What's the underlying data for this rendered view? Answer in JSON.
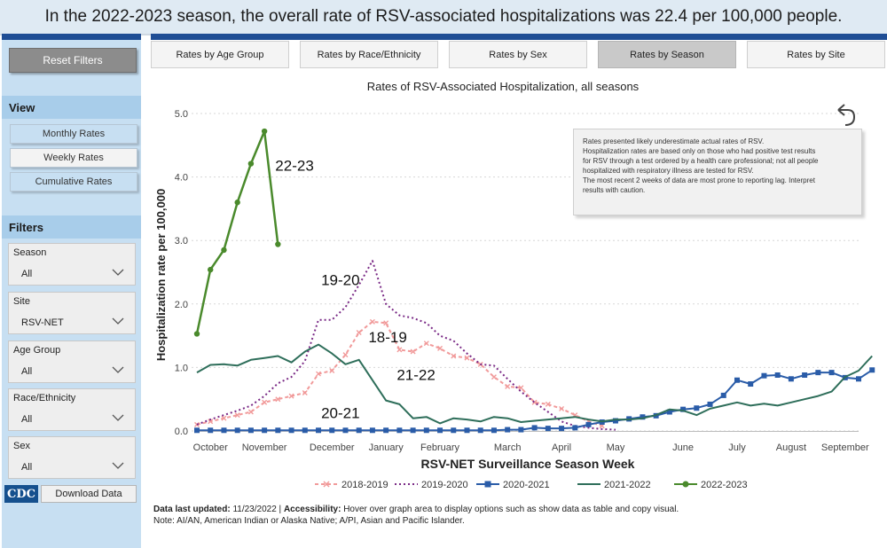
{
  "banner": {
    "text": "In the 2022-2023 season, the overall rate of RSV-associated hospitalizations was 22.4 per 100,000 people."
  },
  "sidebar": {
    "reset_label": "Reset Filters",
    "view_heading": "View",
    "view_buttons": [
      "Monthly Rates",
      "Weekly Rates",
      "Cumulative Rates"
    ],
    "filters_heading": "Filters",
    "filters": [
      {
        "label": "Season",
        "value": "All"
      },
      {
        "label": "Site",
        "value": "RSV-NET"
      },
      {
        "label": "Age Group",
        "value": "All"
      },
      {
        "label": "Race/Ethnicity",
        "value": "All"
      },
      {
        "label": "Sex",
        "value": "All"
      }
    ],
    "logo_text": "CDC",
    "download_label": "Download Data"
  },
  "tabs": [
    {
      "label": "Rates by Age Group",
      "active": false
    },
    {
      "label": "Rates by Race/Ethnicity",
      "active": false
    },
    {
      "label": "Rates by Sex",
      "active": false
    },
    {
      "label": "Rates by Season",
      "active": true
    },
    {
      "label": "Rates by Site",
      "active": false
    }
  ],
  "info_box": {
    "lines": [
      "Rates presented likely underestimate actual rates of RSV.",
      "Hospitalization rates are based only on those who had positive test results",
      "for RSV through a test ordered by a health care professional; not all people",
      "hospitalized with respiratory illness are tested for RSV.",
      "The most recent 2 weeks of data are most prone to reporting lag. Interpret",
      "results with caution."
    ]
  },
  "footer": {
    "updated_label": "Data last updated:",
    "updated_value": " 11/23/2022 | ",
    "accessibility_label": "Accessibility:",
    "accessibility_text": " Hover over graph area to display options such as show data as table and copy visual.",
    "note": "Note: AI/AN, American Indian or Alaska Native; A/PI, Asian and Pacific Islander."
  },
  "colors": {
    "s2018": "#f19a9a",
    "s2019": "#7a2a86",
    "s2020": "#2a5ca8",
    "s2021": "#2e6e5a",
    "s2022": "#4a8a2c",
    "nav": "#1f4e95"
  },
  "chart_data": {
    "type": "line",
    "title": "Rates of RSV-Associated Hospitalization, all seasons",
    "xlabel": "RSV-NET Surveillance Season Week",
    "ylabel": "Hospitalization rate per 100,000",
    "ylim": [
      0,
      5
    ],
    "yticks": [
      "0.0",
      "1.0",
      "2.0",
      "3.0",
      "4.0",
      "5.0"
    ],
    "month_ticks": [
      {
        "label": "October",
        "week": 2
      },
      {
        "label": "November",
        "week": 6
      },
      {
        "label": "December",
        "week": 11
      },
      {
        "label": "January",
        "week": 15
      },
      {
        "label": "February",
        "week": 19
      },
      {
        "label": "March",
        "week": 24
      },
      {
        "label": "April",
        "week": 28
      },
      {
        "label": "May",
        "week": 32
      },
      {
        "label": "June",
        "week": 37
      },
      {
        "label": "July",
        "week": 41
      },
      {
        "label": "August",
        "week": 45
      },
      {
        "label": "September",
        "week": 49
      }
    ],
    "week_range": [
      1,
      50
    ],
    "legend_position": "bottom",
    "series": [
      {
        "name": "2018-2019",
        "key": "s2018",
        "marker": "x",
        "dash": "4,3",
        "label": "18-19",
        "label_week": 13.7,
        "label_value": 1.4,
        "values": [
          0.1,
          0.15,
          0.2,
          0.25,
          0.3,
          0.45,
          0.5,
          0.55,
          0.6,
          0.9,
          0.95,
          1.2,
          1.55,
          1.72,
          1.7,
          1.28,
          1.25,
          1.38,
          1.3,
          1.18,
          1.15,
          1.05,
          0.85,
          0.7,
          0.68,
          0.45,
          0.42,
          0.35,
          0.25,
          0.15,
          0.08
        ]
      },
      {
        "name": "2019-2020",
        "key": "s2019",
        "marker": "none",
        "dash": "2,3",
        "label": "19-20",
        "label_week": 10.2,
        "label_value": 2.3,
        "values": [
          0.1,
          0.18,
          0.25,
          0.32,
          0.4,
          0.55,
          0.75,
          0.85,
          1.1,
          1.75,
          1.75,
          1.95,
          2.3,
          2.68,
          2.0,
          1.82,
          1.78,
          1.7,
          1.5,
          1.42,
          1.22,
          1.05,
          1.03,
          0.82,
          0.62,
          0.45,
          0.3,
          0.15,
          0.08,
          0.05,
          0.03,
          0.02
        ]
      },
      {
        "name": "2020-2021",
        "key": "s2020",
        "marker": "square",
        "dash": "",
        "label": "20-21",
        "label_week": 10.2,
        "label_value": 0.2,
        "values": [
          0.01,
          0.01,
          0.01,
          0.01,
          0.01,
          0.01,
          0.01,
          0.01,
          0.01,
          0.01,
          0.01,
          0.01,
          0.01,
          0.01,
          0.01,
          0.01,
          0.01,
          0.01,
          0.01,
          0.01,
          0.01,
          0.01,
          0.01,
          0.02,
          0.02,
          0.05,
          0.04,
          0.04,
          0.05,
          0.1,
          0.14,
          0.16,
          0.19,
          0.22,
          0.24,
          0.3,
          0.34,
          0.36,
          0.42,
          0.56,
          0.8,
          0.74,
          0.87,
          0.88,
          0.82,
          0.88,
          0.92,
          0.92,
          0.84,
          0.82,
          0.96
        ]
      },
      {
        "name": "2021-2022",
        "key": "s2021",
        "marker": "none",
        "dash": "",
        "label": "21-22",
        "label_week": 15.8,
        "label_value": 0.8,
        "values": [
          0.92,
          1.04,
          1.05,
          1.03,
          1.12,
          1.15,
          1.18,
          1.08,
          1.25,
          1.36,
          1.22,
          1.05,
          1.12,
          0.8,
          0.48,
          0.42,
          0.2,
          0.22,
          0.12,
          0.2,
          0.18,
          0.15,
          0.22,
          0.2,
          0.14,
          0.16,
          0.18,
          0.2,
          0.22,
          0.18,
          0.15,
          0.18,
          0.18,
          0.2,
          0.25,
          0.34,
          0.32,
          0.25,
          0.35,
          0.4,
          0.45,
          0.4,
          0.43,
          0.4,
          0.45,
          0.5,
          0.55,
          0.62,
          0.85,
          0.95,
          1.18
        ]
      },
      {
        "name": "2022-2023",
        "key": "s2022",
        "marker": "circle",
        "dash": "",
        "label": "22-23",
        "label_week": 6.8,
        "label_value": 4.1,
        "values": [
          1.53,
          2.54,
          2.85,
          3.6,
          4.21,
          4.72,
          2.94
        ]
      }
    ]
  }
}
